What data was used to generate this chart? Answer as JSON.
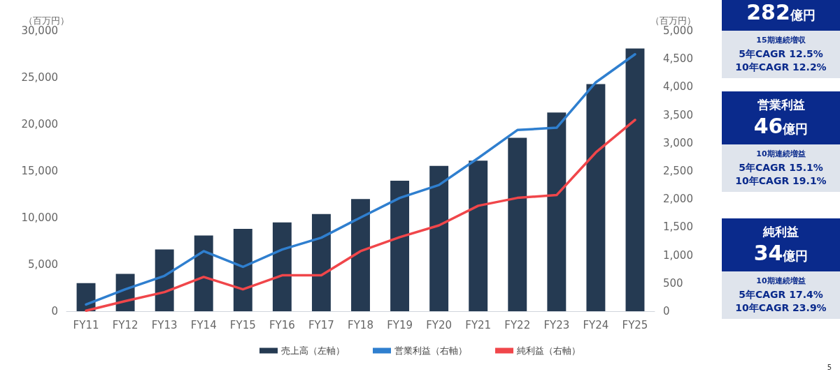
{
  "chart_data": {
    "type": "bar",
    "categories": [
      "FY11",
      "FY12",
      "FY13",
      "FY14",
      "FY15",
      "FY16",
      "FY17",
      "FY18",
      "FY19",
      "FY20",
      "FY21",
      "FY22",
      "FY23",
      "FY24",
      "FY25"
    ],
    "series": [
      {
        "name": "売上高（左軸）",
        "color": "#253a52",
        "values": [
          3000,
          4000,
          6600,
          8100,
          8800,
          9500,
          10400,
          12000,
          13950,
          15550,
          16100,
          18550,
          21250,
          24300,
          28100
        ]
      },
      {
        "name": "営業利益（右軸）",
        "type": "line",
        "axis": "y2",
        "color": "#2f7fcf",
        "values": [
          120,
          390,
          630,
          1070,
          790,
          1100,
          1310,
          1670,
          2020,
          2250,
          2730,
          3230,
          3270,
          4080,
          4580
        ]
      },
      {
        "name": "純利益（右軸）",
        "type": "line",
        "axis": "y2",
        "color": "#f0464a",
        "values": [
          10,
          180,
          340,
          610,
          390,
          640,
          640,
          1070,
          1320,
          1530,
          1880,
          2020,
          2070,
          2830,
          3410
        ]
      }
    ],
    "ylabel": "（百万円）",
    "y2label": "（百万円）",
    "ylim": [
      0,
      30000
    ],
    "yticks": [
      0,
      {
        "value": 5000,
        "label": "5,000"
      },
      {
        "value": 10000,
        "label": "10,000"
      },
      {
        "value": 15000,
        "label": "15,000"
      },
      {
        "value": 20000,
        "label": "20,000"
      },
      {
        "value": 25000,
        "label": "25,000"
      },
      {
        "value": 30000,
        "label": "30,000"
      }
    ],
    "y2lim": [
      0,
      5000
    ],
    "y2ticks": [
      0,
      500,
      {
        "value": 1000,
        "label": "1,000"
      },
      {
        "value": 1500,
        "label": "1,500"
      },
      {
        "value": 2000,
        "label": "2,000"
      },
      {
        "value": 2500,
        "label": "2,500"
      },
      {
        "value": 3000,
        "label": "3,000"
      },
      {
        "value": 3500,
        "label": "3,500"
      },
      {
        "value": 4000,
        "label": "4,000"
      },
      {
        "value": 4500,
        "label": "4,500"
      },
      {
        "value": 5000,
        "label": "5,000"
      }
    ],
    "legend": "bottom",
    "marker": "none",
    "line_style": "solid",
    "annotations": [
      "282億円",
      "15期連続増収",
      "5年CAGR 12.5%",
      "10年CAGR 12.2%",
      "営業利益",
      "46億円",
      "10期連続増益",
      "5年CAGR 15.1%",
      "10年CAGR 19.1%",
      "純利益",
      "34億円",
      "10期連続増益",
      "5年CAGR 17.4%",
      "10年CAGR 23.9%",
      "5"
    ]
  }
}
